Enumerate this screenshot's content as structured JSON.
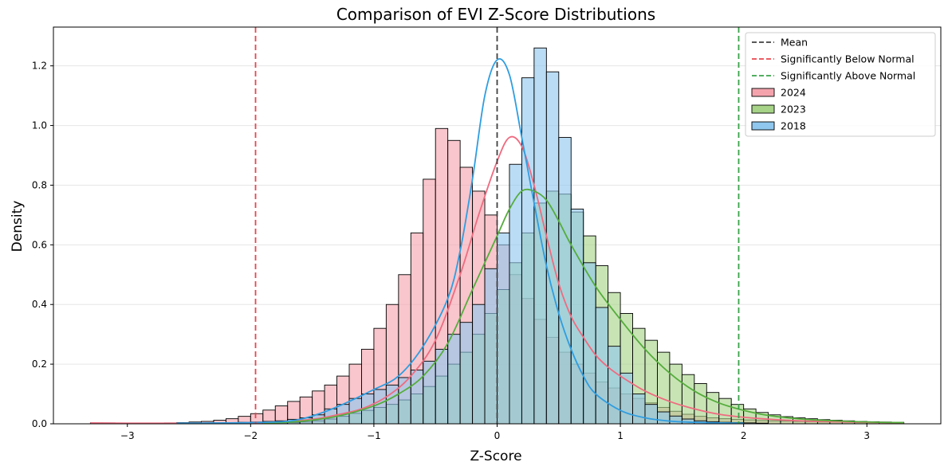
{
  "chart_data": {
    "type": "histogram",
    "title": "Comparison of EVI Z-Score Distributions",
    "xlabel": "Z-Score",
    "ylabel": "Density",
    "xlim": [
      -3.6,
      3.6
    ],
    "ylim": [
      0,
      1.33
    ],
    "xticks": [
      -3,
      -2,
      -1,
      0,
      1,
      2,
      3
    ],
    "xtick_labels": [
      "−3",
      "−2",
      "−1",
      "0",
      "1",
      "2",
      "3"
    ],
    "yticks": [
      0.0,
      0.2,
      0.4,
      0.6,
      0.8,
      1.0,
      1.2
    ],
    "ytick_labels": [
      "0.0",
      "0.2",
      "0.4",
      "0.6",
      "0.8",
      "1.0",
      "1.2"
    ],
    "grid": "horizontal",
    "legend_position": "top-right",
    "reference_lines": [
      {
        "name": "Mean",
        "x": 0,
        "color": "#404040"
      },
      {
        "name": "Significantly Below Normal",
        "x": -1.96,
        "color": "#e8474f"
      },
      {
        "name": "Significantly Above Normal",
        "x": 1.96,
        "color": "#3aa24a"
      }
    ],
    "series": [
      {
        "name": "2024",
        "color": "#f4a3ad",
        "line_color": "#ef6b80",
        "bin_start": -3.3,
        "bin_width": 0.1,
        "values": [
          0.003,
          0.003,
          0.002,
          0.002,
          0.002,
          0.002,
          0.003,
          0.004,
          0.006,
          0.008,
          0.012,
          0.017,
          0.025,
          0.034,
          0.046,
          0.06,
          0.075,
          0.09,
          0.11,
          0.13,
          0.16,
          0.2,
          0.25,
          0.32,
          0.4,
          0.5,
          0.64,
          0.82,
          0.99,
          0.95,
          0.86,
          0.78,
          0.7,
          0.6,
          0.5,
          0.42,
          0.35,
          0.29,
          0.24,
          0.2,
          0.17,
          0.14,
          0.12,
          0.1,
          0.085,
          0.07,
          0.055,
          0.042,
          0.032,
          0.025,
          0.02,
          0.017,
          0.015,
          0.013,
          0.011,
          0.01,
          0.009,
          0.008,
          0.007,
          0.006,
          0.006,
          0.005,
          0.004,
          0.004,
          0.004,
          0.003
        ],
        "kde_x": [
          -3.3,
          -3.0,
          -2.7,
          -2.4,
          -2.1,
          -1.8,
          -1.5,
          -1.3,
          -1.1,
          -0.9,
          -0.7,
          -0.5,
          -0.3,
          -0.15,
          0.0,
          0.1,
          0.2,
          0.3,
          0.4,
          0.5,
          0.6,
          0.7,
          0.8,
          0.9,
          1.0,
          1.2,
          1.4,
          1.6,
          1.8,
          2.0,
          2.3,
          2.6,
          3.0,
          3.3
        ],
        "kde_y": [
          0.003,
          0.002,
          0.002,
          0.002,
          0.003,
          0.006,
          0.015,
          0.03,
          0.05,
          0.09,
          0.16,
          0.28,
          0.5,
          0.7,
          0.88,
          0.96,
          0.93,
          0.8,
          0.63,
          0.47,
          0.36,
          0.29,
          0.23,
          0.19,
          0.16,
          0.11,
          0.075,
          0.05,
          0.032,
          0.022,
          0.013,
          0.008,
          0.005,
          0.003
        ]
      },
      {
        "name": "2023",
        "color": "#a6d387",
        "line_color": "#55ad3c",
        "bin_start": -2.0,
        "bin_width": 0.1,
        "values": [
          0.002,
          0.002,
          0.003,
          0.004,
          0.006,
          0.01,
          0.016,
          0.025,
          0.035,
          0.045,
          0.055,
          0.065,
          0.08,
          0.1,
          0.125,
          0.16,
          0.2,
          0.24,
          0.3,
          0.37,
          0.45,
          0.54,
          0.64,
          0.74,
          0.78,
          0.77,
          0.71,
          0.63,
          0.53,
          0.44,
          0.37,
          0.32,
          0.28,
          0.24,
          0.2,
          0.165,
          0.135,
          0.105,
          0.085,
          0.065,
          0.05,
          0.038,
          0.03,
          0.024,
          0.02,
          0.017,
          0.014,
          0.012,
          0.01,
          0.008,
          0.007,
          0.006,
          0.005
        ],
        "kde_x": [
          -1.9,
          -1.6,
          -1.3,
          -1.0,
          -0.8,
          -0.6,
          -0.4,
          -0.2,
          0.0,
          0.1,
          0.2,
          0.3,
          0.4,
          0.5,
          0.6,
          0.8,
          1.0,
          1.2,
          1.4,
          1.6,
          1.8,
          2.0,
          2.2,
          2.5,
          2.8,
          3.1,
          3.3
        ],
        "kde_y": [
          0.002,
          0.008,
          0.025,
          0.06,
          0.1,
          0.16,
          0.27,
          0.45,
          0.63,
          0.72,
          0.78,
          0.78,
          0.75,
          0.68,
          0.6,
          0.46,
          0.35,
          0.25,
          0.17,
          0.11,
          0.07,
          0.045,
          0.028,
          0.015,
          0.009,
          0.005,
          0.004
        ]
      },
      {
        "name": "2018",
        "color": "#8fc7ee",
        "line_color": "#2f9de0",
        "bin_start": -2.6,
        "bin_width": 0.1,
        "values": [
          0.002,
          0.002,
          0.002,
          0.003,
          0.004,
          0.005,
          0.006,
          0.008,
          0.01,
          0.015,
          0.02,
          0.03,
          0.05,
          0.065,
          0.085,
          0.1,
          0.115,
          0.13,
          0.155,
          0.18,
          0.21,
          0.25,
          0.3,
          0.34,
          0.4,
          0.52,
          0.64,
          0.87,
          1.16,
          1.26,
          1.18,
          0.96,
          0.72,
          0.54,
          0.39,
          0.26,
          0.17,
          0.1,
          0.065,
          0.04,
          0.026,
          0.016,
          0.01,
          0.007,
          0.005,
          0.004,
          0.003,
          0.002
        ],
        "kde_x": [
          -2.6,
          -2.2,
          -1.8,
          -1.6,
          -1.4,
          -1.2,
          -1.0,
          -0.8,
          -0.6,
          -0.4,
          -0.3,
          -0.2,
          -0.1,
          0.0,
          0.1,
          0.2,
          0.3,
          0.4,
          0.5,
          0.6,
          0.7,
          0.8,
          1.0,
          1.2,
          1.4,
          1.6,
          1.8,
          2.0
        ],
        "kde_y": [
          0.002,
          0.003,
          0.006,
          0.015,
          0.04,
          0.075,
          0.115,
          0.16,
          0.26,
          0.42,
          0.58,
          0.82,
          1.1,
          1.22,
          1.17,
          0.96,
          0.74,
          0.53,
          0.37,
          0.25,
          0.16,
          0.1,
          0.045,
          0.02,
          0.009,
          0.005,
          0.003,
          0.002
        ]
      }
    ]
  },
  "legend": {
    "items": [
      {
        "label": "Mean",
        "kind": "line",
        "color": "#404040"
      },
      {
        "label": "Significantly Below Normal",
        "kind": "line",
        "color": "#e8474f"
      },
      {
        "label": "Significantly Above Normal",
        "kind": "line",
        "color": "#3aa24a"
      },
      {
        "label": "2024",
        "kind": "patch",
        "color": "#f4a3ad"
      },
      {
        "label": "2023",
        "kind": "patch",
        "color": "#a6d387"
      },
      {
        "label": "2018",
        "kind": "patch",
        "color": "#8fc7ee"
      }
    ]
  }
}
